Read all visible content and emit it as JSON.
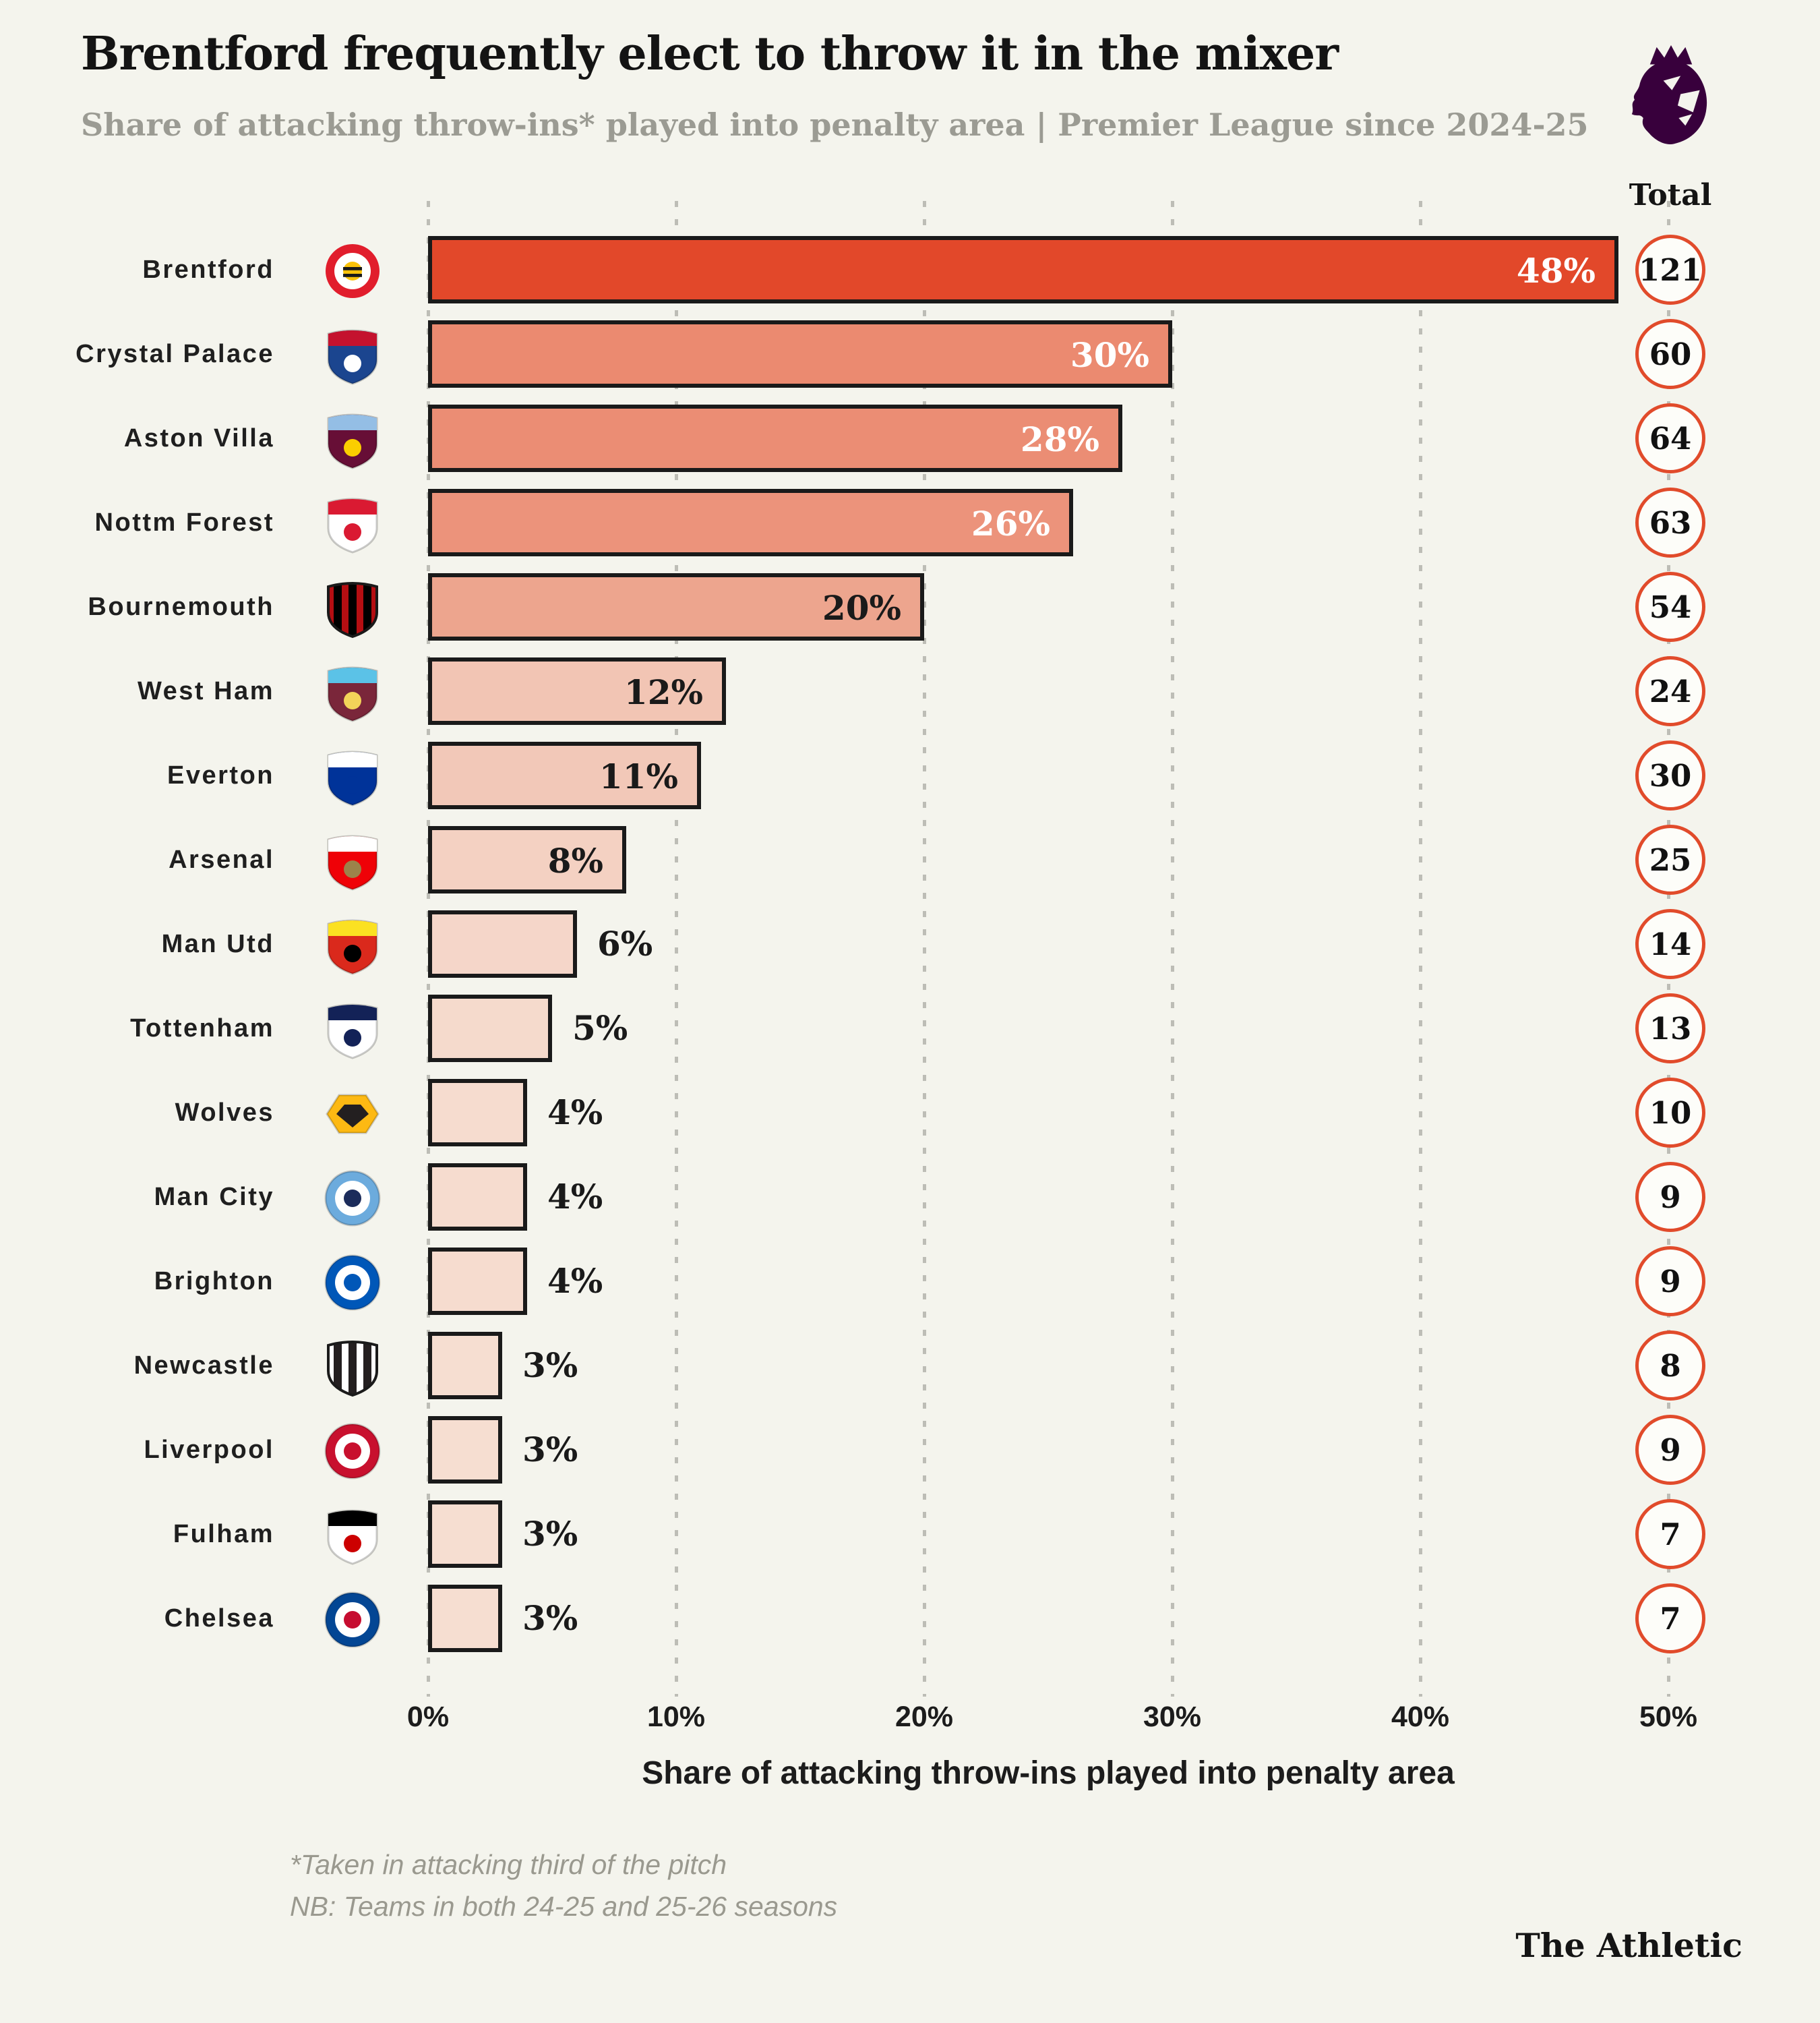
{
  "colors": {
    "background": "#f4f4ed",
    "bar_border": "#1a1a1a",
    "grid": "#bdbdb6",
    "accent_orange": "#e14b2b",
    "title": "#141414",
    "subtitle_gray": "#9b9b93",
    "footnote_gray": "#9a998f",
    "premier_league_purple": "#38003c",
    "label_light": "#ffffff",
    "label_dark": "#1a1a1a"
  },
  "header": {
    "title": "Brentford frequently elect to throw it in the mixer",
    "subtitle": "Share of attacking throw-ins* played into penalty area | Premier League since 2024-25",
    "logo_icon": "premier-league-lion-logo"
  },
  "totals_header": "Total",
  "axis": {
    "ticks": [
      "0%",
      "10%",
      "20%",
      "30%",
      "40%",
      "50%"
    ],
    "title": "Share of attacking throw-ins played into penalty area"
  },
  "teams": [
    {
      "name": "Brentford",
      "slug": "brentford",
      "pct": 48,
      "pct_label": "48%",
      "total": "121",
      "bar_color": "#e2482a",
      "label_placement": "inside",
      "label_tone": "light",
      "badge": {
        "style": "circle-ring",
        "colors": [
          "#e11d2c",
          "#ffffff",
          "#f9c20a"
        ]
      }
    },
    {
      "name": "Crystal Palace",
      "slug": "crystal-palace",
      "pct": 30,
      "pct_label": "30%",
      "total": "60",
      "bar_color": "#eb8a70",
      "label_placement": "inside",
      "label_tone": "light",
      "badge": {
        "style": "shield",
        "colors": [
          "#1b458f",
          "#c4122e",
          "#ffffff"
        ]
      }
    },
    {
      "name": "Aston Villa",
      "slug": "aston-villa",
      "pct": 28,
      "pct_label": "28%",
      "total": "64",
      "bar_color": "#eb8d74",
      "label_placement": "inside",
      "label_tone": "light",
      "badge": {
        "style": "shield",
        "colors": [
          "#670e36",
          "#94bee5",
          "#fbce00"
        ]
      }
    },
    {
      "name": "Nottm Forest",
      "slug": "nottm-forest",
      "pct": 26,
      "pct_label": "26%",
      "total": "63",
      "bar_color": "#ec937b",
      "label_placement": "inside",
      "label_tone": "light",
      "badge": {
        "style": "shield",
        "colors": [
          "#ffffff",
          "#da1a32",
          "#da1a32"
        ]
      }
    },
    {
      "name": "Bournemouth",
      "slug": "bournemouth",
      "pct": 20,
      "pct_label": "20%",
      "total": "54",
      "bar_color": "#eda58e",
      "label_placement": "inside",
      "label_tone": "dark",
      "badge": {
        "style": "shield-striped",
        "colors": [
          "#b50e12",
          "#000000"
        ]
      }
    },
    {
      "name": "West Ham",
      "slug": "west-ham",
      "pct": 12,
      "pct_label": "12%",
      "total": "24",
      "bar_color": "#f2c5b4",
      "label_placement": "inside",
      "label_tone": "dark",
      "badge": {
        "style": "shield",
        "colors": [
          "#7a263a",
          "#5bc2e7",
          "#f3d459"
        ]
      }
    },
    {
      "name": "Everton",
      "slug": "everton",
      "pct": 11,
      "pct_label": "11%",
      "total": "30",
      "bar_color": "#f2c8b8",
      "label_placement": "inside",
      "label_tone": "dark",
      "badge": {
        "style": "shield",
        "colors": [
          "#003399",
          "#ffffff",
          "#003399"
        ]
      }
    },
    {
      "name": "Arsenal",
      "slug": "arsenal",
      "pct": 8,
      "pct_label": "8%",
      "total": "25",
      "bar_color": "#f4d1c2",
      "label_placement": "inside",
      "label_tone": "dark",
      "badge": {
        "style": "shield",
        "colors": [
          "#ef0107",
          "#ffffff",
          "#9c824a"
        ]
      }
    },
    {
      "name": "Man Utd",
      "slug": "man-utd",
      "pct": 6,
      "pct_label": "6%",
      "total": "14",
      "bar_color": "#f5d6c9",
      "label_placement": "outside",
      "label_tone": "dark",
      "badge": {
        "style": "shield",
        "colors": [
          "#da291c",
          "#fbe122",
          "#000000"
        ]
      }
    },
    {
      "name": "Tottenham",
      "slug": "tottenham",
      "pct": 5,
      "pct_label": "5%",
      "total": "13",
      "bar_color": "#f5dacc",
      "label_placement": "outside",
      "label_tone": "dark",
      "badge": {
        "style": "shield",
        "colors": [
          "#ffffff",
          "#132257",
          "#132257"
        ]
      }
    },
    {
      "name": "Wolves",
      "slug": "wolves",
      "pct": 4,
      "pct_label": "4%",
      "total": "10",
      "bar_color": "#f6dccf",
      "label_placement": "outside",
      "label_tone": "dark",
      "badge": {
        "style": "hex",
        "colors": [
          "#fdb913",
          "#231f20"
        ]
      }
    },
    {
      "name": "Man City",
      "slug": "man-city",
      "pct": 4,
      "pct_label": "4%",
      "total": "9",
      "bar_color": "#f6dccf",
      "label_placement": "outside",
      "label_tone": "dark",
      "badge": {
        "style": "circle",
        "colors": [
          "#6cabdd",
          "#ffffff",
          "#1c2c5b"
        ]
      }
    },
    {
      "name": "Brighton",
      "slug": "brighton",
      "pct": 4,
      "pct_label": "4%",
      "total": "9",
      "bar_color": "#f6dccf",
      "label_placement": "outside",
      "label_tone": "dark",
      "badge": {
        "style": "circle",
        "colors": [
          "#0057b8",
          "#ffffff",
          "#0057b8"
        ]
      }
    },
    {
      "name": "Newcastle",
      "slug": "newcastle",
      "pct": 3,
      "pct_label": "3%",
      "total": "8",
      "bar_color": "#f6ded1",
      "label_placement": "outside",
      "label_tone": "dark",
      "badge": {
        "style": "shield-striped",
        "colors": [
          "#ffffff",
          "#241f20"
        ]
      }
    },
    {
      "name": "Liverpool",
      "slug": "liverpool",
      "pct": 3,
      "pct_label": "3%",
      "total": "9",
      "bar_color": "#f6ded1",
      "label_placement": "outside",
      "label_tone": "dark",
      "badge": {
        "style": "circle",
        "colors": [
          "#c8102e",
          "#ffffff",
          "#c8102e"
        ]
      }
    },
    {
      "name": "Fulham",
      "slug": "fulham",
      "pct": 3,
      "pct_label": "3%",
      "total": "7",
      "bar_color": "#f6ded1",
      "label_placement": "outside",
      "label_tone": "dark",
      "badge": {
        "style": "shield",
        "colors": [
          "#ffffff",
          "#000000",
          "#cc0000"
        ]
      }
    },
    {
      "name": "Chelsea",
      "slug": "chelsea",
      "pct": 3,
      "pct_label": "3%",
      "total": "7",
      "bar_color": "#f6ded1",
      "label_placement": "outside",
      "label_tone": "dark",
      "badge": {
        "style": "circle",
        "colors": [
          "#034694",
          "#ffffff",
          "#c60c30"
        ]
      }
    }
  ],
  "footnotes": {
    "line1": "*Taken in attacking third of the pitch",
    "line2": "NB: Teams in both 24-25 and 25-26 seasons"
  },
  "credit": "The Athletic",
  "chart_data": {
    "type": "bar",
    "orientation": "horizontal",
    "title": "Brentford frequently elect to throw it in the mixer",
    "subtitle": "Share of attacking throw-ins* played into penalty area | Premier League since 2024-25",
    "categories": [
      "Brentford",
      "Crystal Palace",
      "Aston Villa",
      "Nottm Forest",
      "Bournemouth",
      "West Ham",
      "Everton",
      "Arsenal",
      "Man Utd",
      "Tottenham",
      "Wolves",
      "Man City",
      "Brighton",
      "Newcastle",
      "Liverpool",
      "Fulham",
      "Chelsea"
    ],
    "series": [
      {
        "name": "Share of attacking throw-ins played into penalty area (%)",
        "values": [
          48,
          30,
          28,
          26,
          20,
          12,
          11,
          8,
          6,
          5,
          4,
          4,
          4,
          3,
          3,
          3,
          3
        ]
      },
      {
        "name": "Total throw-ins into penalty area",
        "values": [
          121,
          60,
          64,
          63,
          54,
          24,
          30,
          25,
          14,
          13,
          10,
          9,
          9,
          8,
          9,
          7,
          7
        ]
      }
    ],
    "xlabel": "Share of attacking throw-ins played into penalty area",
    "ylabel": "",
    "xlim": [
      0,
      50
    ],
    "xticks": [
      "0%",
      "10%",
      "20%",
      "30%",
      "40%",
      "50%"
    ],
    "grid": "dotted-vertical",
    "legend_position": "none",
    "value_labels": "on-bar",
    "totals_column_header": "Total"
  }
}
